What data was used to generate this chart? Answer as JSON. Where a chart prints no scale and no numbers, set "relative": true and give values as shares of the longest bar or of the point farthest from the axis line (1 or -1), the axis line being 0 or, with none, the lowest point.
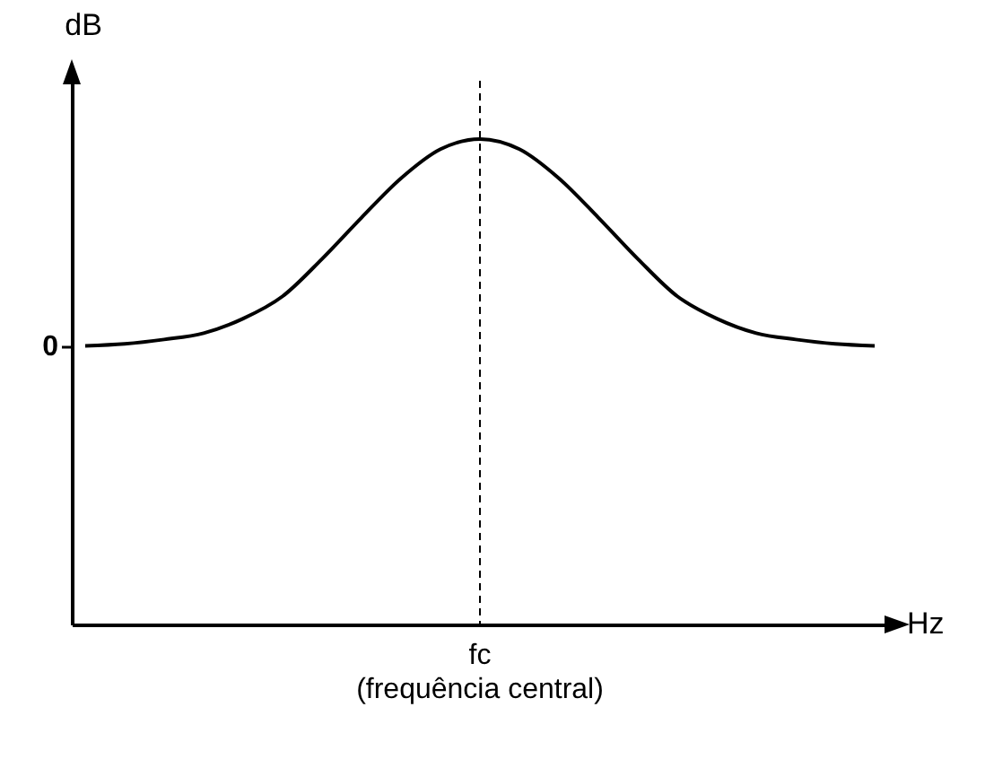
{
  "chart_data": {
    "type": "line",
    "relative": true,
    "ylabel": "dB",
    "color": "#000000",
    "categories": [
      null,
      null,
      null,
      null,
      null,
      null,
      null,
      null,
      null,
      null,
      null,
      null,
      null,
      null,
      null,
      null,
      null,
      null,
      null,
      null,
      null
    ],
    "values": [
      0.574,
      0.578,
      0.587,
      0.6,
      0.63,
      0.676,
      0.753,
      0.838,
      0.919,
      0.979,
      1,
      0.979,
      0.919,
      0.838,
      0.753,
      0.676,
      0.63,
      0.6,
      0.587,
      0.578,
      0.574
    ],
    "ref_lines": [
      {
        "axis": "x",
        "label": "fc",
        "line_style": "dashed"
      }
    ],
    "annotations": [
      "0",
      "(frequência central)",
      "Hz"
    ]
  }
}
